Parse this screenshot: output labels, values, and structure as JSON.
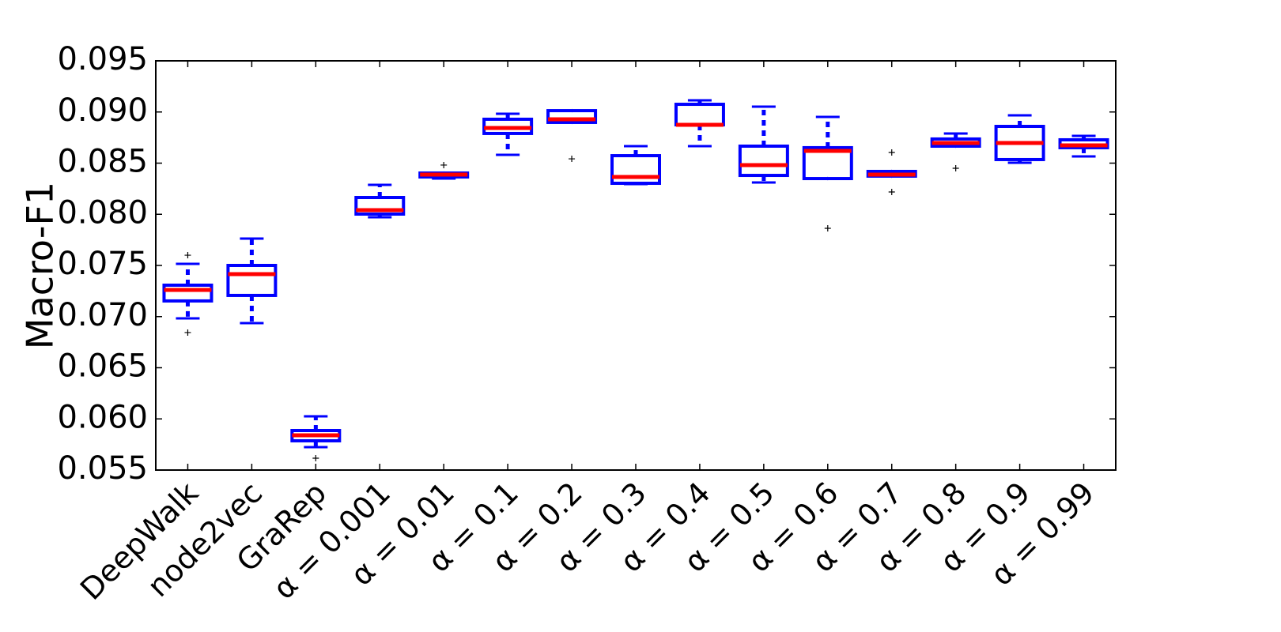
{
  "chart_data": {
    "type": "box",
    "ylabel": "Macro-F1",
    "categories": [
      "DeepWalk",
      "node2vec",
      "GraRep",
      "α = 0.001",
      "α = 0.01",
      "α = 0.1",
      "α = 0.2",
      "α = 0.3",
      "α = 0.4",
      "α = 0.5",
      "α = 0.6",
      "α = 0.7",
      "α = 0.8",
      "α = 0.9",
      "α = 0.99"
    ],
    "whisker_low": [
      0.06983,
      0.06936,
      0.05724,
      0.07971,
      0.08349,
      0.08581,
      0.08898,
      0.08295,
      0.08666,
      0.08311,
      0.08349,
      0.08373,
      0.08666,
      0.08504,
      0.08566
    ],
    "q1": [
      0.07153,
      0.07207,
      0.05786,
      0.08002,
      0.08365,
      0.0879,
      0.08898,
      0.08303,
      0.08875,
      0.0838,
      0.08349,
      0.08373,
      0.08666,
      0.08535,
      0.08651
    ],
    "median": [
      0.07261,
      0.07415,
      0.0584,
      0.08041,
      0.08388,
      0.08844,
      0.08929,
      0.08365,
      0.08875,
      0.08481,
      0.0862,
      0.08388,
      0.08697,
      0.08697,
      0.08674
    ],
    "q3": [
      0.07307,
      0.075,
      0.05886,
      0.08164,
      0.08403,
      0.08929,
      0.09013,
      0.08573,
      0.09075,
      0.08666,
      0.08651,
      0.08419,
      0.08736,
      0.08859,
      0.08728
    ],
    "whisker_high": [
      0.07515,
      0.07763,
      0.06025,
      0.08288,
      0.08403,
      0.08983,
      0.09013,
      0.08666,
      0.09114,
      0.09052,
      0.08952,
      0.08419,
      0.0879,
      0.08967,
      0.08766
    ],
    "outliers": [
      [
        0.076,
        0.06844
      ],
      [],
      [
        0.05616
      ],
      [],
      [
        0.08481
      ],
      [],
      [
        0.08542
      ],
      [],
      [],
      [],
      [
        0.07863
      ],
      [
        0.08604,
        0.08218
      ],
      [
        0.0845
      ],
      [],
      []
    ],
    "box_color": "#0000ff",
    "median_color": "#ff0000",
    "ylim": [
      0.055,
      0.095
    ],
    "yticks": [
      {
        "value": 0.055,
        "label": "0.055"
      },
      {
        "value": 0.06,
        "label": "0.060"
      },
      {
        "value": 0.065,
        "label": "0.065"
      },
      {
        "value": 0.07,
        "label": "0.070"
      },
      {
        "value": 0.075,
        "label": "0.075"
      },
      {
        "value": 0.08,
        "label": "0.080"
      },
      {
        "value": 0.085,
        "label": "0.085"
      },
      {
        "value": 0.09,
        "label": "0.090"
      },
      {
        "value": 0.095,
        "label": "0.095"
      }
    ]
  }
}
